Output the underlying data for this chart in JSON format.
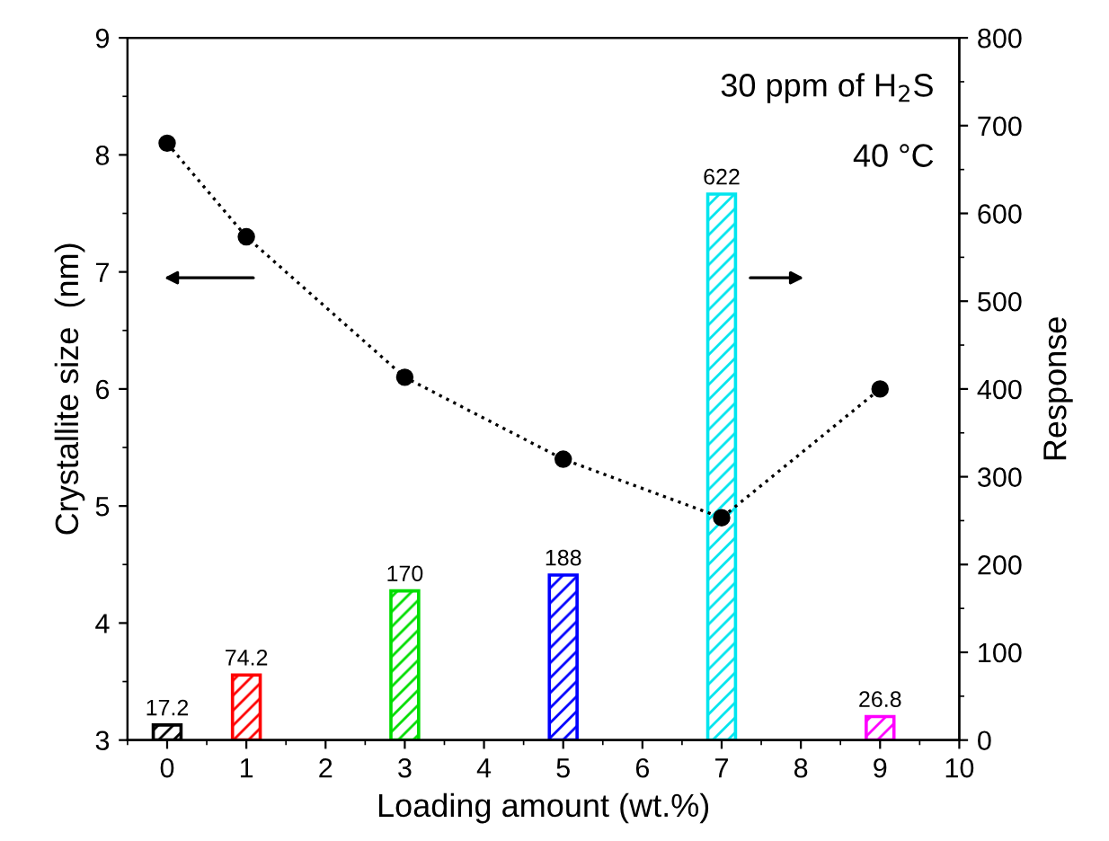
{
  "chart_data": {
    "type": "line",
    "xlabel": "Loading amount (wt.%)",
    "ylabel": "Crystallite size  (nm)",
    "y2label": "Response",
    "x": [
      0,
      1,
      3,
      5,
      7,
      9
    ],
    "series": [
      {
        "color": "#000000",
        "values": [
          8.1,
          7.3,
          6.1,
          5.4,
          4.9,
          6.0
        ],
        "marker": "circle",
        "line_style": "dotted"
      },
      {
        "type": "bar",
        "axis": "y2",
        "colors": [
          "#000000",
          "#ff0000",
          "#00dd00",
          "#0000ff",
          "#00e5ee",
          "#ff00ff"
        ],
        "values": [
          17.2,
          74.2,
          170,
          188,
          622,
          26.8
        ],
        "data_labels": true
      }
    ],
    "xlim": [
      -0.5,
      10
    ],
    "xticks": [
      0,
      1,
      2,
      3,
      4,
      5,
      6,
      7,
      8,
      9,
      10
    ],
    "ylim": [
      3,
      9
    ],
    "yticks": [
      3,
      4,
      5,
      6,
      7,
      8,
      9
    ],
    "y2lim": [
      0,
      800
    ],
    "y2ticks": [
      0,
      100,
      200,
      300,
      400,
      500,
      600,
      700,
      800
    ],
    "annotations": [
      "30 ppm of H$_{2}$S",
      "40 °C"
    ],
    "grid": false,
    "legend": false
  }
}
